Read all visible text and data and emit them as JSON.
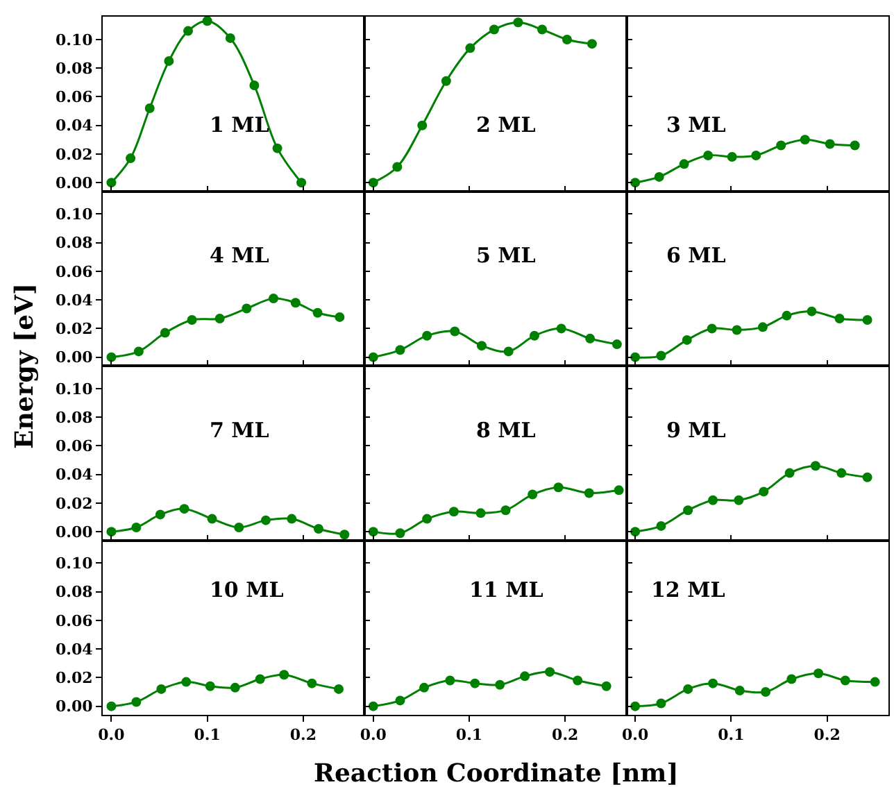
{
  "chart_data": [
    {
      "type": "line",
      "annotations": [
        "1 ML"
      ],
      "ylabel": "Energy [eV]",
      "x": [
        0,
        0.02,
        0.04,
        0.06,
        0.08,
        0.1,
        0.124,
        0.149,
        0.173,
        0.198
      ],
      "values": [
        0,
        0.017,
        0.052,
        0.085,
        0.106,
        0.113,
        0.101,
        0.068,
        0.024,
        0
      ],
      "color": "#008000",
      "marker": "circle",
      "xlim": [
        -0.009,
        0.264
      ],
      "ylim": [
        -0.006,
        0.116
      ],
      "xticks": [
        {
          "value": 0,
          "label": null
        },
        {
          "value": 0.1,
          "label": null
        },
        {
          "value": 0.2,
          "label": null
        }
      ],
      "yticks": [
        {
          "value": 0,
          "label": "0.00"
        },
        0.02,
        0.04,
        0.06,
        0.08,
        {
          "value": 0.1,
          "label": "0.10"
        }
      ],
      "tick_labels": "y"
    },
    {
      "type": "line",
      "annotations": [
        "2 ML"
      ],
      "x": [
        0,
        0.025,
        0.051,
        0.076,
        0.101,
        0.126,
        0.151,
        0.176,
        0.202,
        0.228
      ],
      "values": [
        0,
        0.011,
        0.04,
        0.071,
        0.094,
        0.107,
        0.112,
        0.107,
        0.1,
        0.097
      ],
      "color": "#008000",
      "marker": "circle",
      "xlim": [
        -0.009,
        0.264
      ],
      "ylim": [
        -0.006,
        0.116
      ],
      "xticks": [
        {
          "value": 0,
          "label": null
        },
        {
          "value": 0.1,
          "label": null
        },
        {
          "value": 0.2,
          "label": null
        }
      ],
      "yticks": [
        {
          "value": 0,
          "label": null
        },
        {
          "value": 0.02,
          "label": null
        },
        {
          "value": 0.04,
          "label": null
        },
        {
          "value": 0.06,
          "label": null
        },
        {
          "value": 0.08,
          "label": null
        },
        {
          "value": 0.1,
          "label": null
        }
      ],
      "tick_labels": false
    },
    {
      "type": "line",
      "annotations": [
        "3 ML"
      ],
      "x": [
        0,
        0.025,
        0.051,
        0.076,
        0.101,
        0.126,
        0.152,
        0.177,
        0.203,
        0.229
      ],
      "values": [
        0,
        0.004,
        0.013,
        0.019,
        0.018,
        0.019,
        0.026,
        0.03,
        0.027,
        0.026
      ],
      "color": "#008000",
      "marker": "circle",
      "xlim": [
        -0.009,
        0.264
      ],
      "ylim": [
        -0.006,
        0.116
      ],
      "xticks": [
        {
          "value": 0,
          "label": null
        },
        {
          "value": 0.1,
          "label": null
        },
        {
          "value": 0.2,
          "label": null
        }
      ],
      "yticks": [
        {
          "value": 0,
          "label": null
        },
        {
          "value": 0.02,
          "label": null
        },
        {
          "value": 0.04,
          "label": null
        },
        {
          "value": 0.06,
          "label": null
        },
        {
          "value": 0.08,
          "label": null
        },
        {
          "value": 0.1,
          "label": null
        }
      ],
      "tick_labels": false
    },
    {
      "type": "line",
      "annotations": [
        "4 ML"
      ],
      "x": [
        0,
        0.0285,
        0.056,
        0.084,
        0.113,
        0.141,
        0.169,
        0.192,
        0.215,
        0.238
      ],
      "values": [
        0,
        0.004,
        0.017,
        0.026,
        0.027,
        0.034,
        0.041,
        0.038,
        0.031,
        0.028
      ],
      "color": "#008000",
      "marker": "circle",
      "xlim": [
        -0.009,
        0.264
      ],
      "ylim": [
        -0.006,
        0.116
      ],
      "xticks": [
        {
          "value": 0,
          "label": null
        },
        {
          "value": 0.1,
          "label": null
        },
        {
          "value": 0.2,
          "label": null
        }
      ],
      "yticks": [
        {
          "value": 0,
          "label": "0.00"
        },
        0.02,
        0.04,
        0.06,
        0.08,
        {
          "value": 0.1,
          "label": "0.10"
        }
      ],
      "tick_labels": "y"
    },
    {
      "type": "line",
      "annotations": [
        "5 ML"
      ],
      "x": [
        0,
        0.028,
        0.056,
        0.085,
        0.113,
        0.141,
        0.168,
        0.196,
        0.226,
        0.254
      ],
      "values": [
        0,
        0.005,
        0.015,
        0.018,
        0.008,
        0.004,
        0.015,
        0.02,
        0.013,
        0.009
      ],
      "color": "#008000",
      "marker": "circle",
      "xlim": [
        -0.009,
        0.264
      ],
      "ylim": [
        -0.006,
        0.116
      ],
      "xticks": [
        {
          "value": 0,
          "label": null
        },
        {
          "value": 0.1,
          "label": null
        },
        {
          "value": 0.2,
          "label": null
        }
      ],
      "yticks": [
        {
          "value": 0,
          "label": null
        },
        {
          "value": 0.02,
          "label": null
        },
        {
          "value": 0.04,
          "label": null
        },
        {
          "value": 0.06,
          "label": null
        },
        {
          "value": 0.08,
          "label": null
        },
        {
          "value": 0.1,
          "label": null
        }
      ],
      "tick_labels": false
    },
    {
      "type": "line",
      "annotations": [
        "6 ML"
      ],
      "x": [
        0,
        0.027,
        0.054,
        0.08,
        0.106,
        0.133,
        0.158,
        0.184,
        0.213,
        0.242
      ],
      "values": [
        0,
        0.001,
        0.012,
        0.02,
        0.019,
        0.021,
        0.029,
        0.032,
        0.027,
        0.026
      ],
      "color": "#008000",
      "marker": "circle",
      "xlim": [
        -0.009,
        0.264
      ],
      "ylim": [
        -0.006,
        0.116
      ],
      "xticks": [
        {
          "value": 0,
          "label": null
        },
        {
          "value": 0.1,
          "label": null
        },
        {
          "value": 0.2,
          "label": null
        }
      ],
      "yticks": [
        {
          "value": 0,
          "label": null
        },
        {
          "value": 0.02,
          "label": null
        },
        {
          "value": 0.04,
          "label": null
        },
        {
          "value": 0.06,
          "label": null
        },
        {
          "value": 0.08,
          "label": null
        },
        {
          "value": 0.1,
          "label": null
        }
      ],
      "tick_labels": false
    },
    {
      "type": "line",
      "annotations": [
        "7 ML"
      ],
      "x": [
        0,
        0.026,
        0.051,
        0.076,
        0.105,
        0.133,
        0.161,
        0.188,
        0.216,
        0.243
      ],
      "values": [
        0,
        0.003,
        0.012,
        0.016,
        0.009,
        0.003,
        0.008,
        0.009,
        0.002,
        -0.002
      ],
      "color": "#008000",
      "marker": "circle",
      "xlim": [
        -0.009,
        0.264
      ],
      "ylim": [
        -0.006,
        0.116
      ],
      "xticks": [
        {
          "value": 0,
          "label": null
        },
        {
          "value": 0.1,
          "label": null
        },
        {
          "value": 0.2,
          "label": null
        }
      ],
      "yticks": [
        {
          "value": 0,
          "label": "0.00"
        },
        0.02,
        0.04,
        0.06,
        0.08,
        {
          "value": 0.1,
          "label": "0.10"
        }
      ],
      "tick_labels": "y"
    },
    {
      "type": "line",
      "annotations": [
        "8 ML"
      ],
      "x": [
        0,
        0.028,
        0.056,
        0.084,
        0.112,
        0.138,
        0.166,
        0.193,
        0.225,
        0.256
      ],
      "values": [
        0,
        -0.001,
        0.009,
        0.014,
        0.013,
        0.015,
        0.026,
        0.031,
        0.027,
        0.029
      ],
      "color": "#008000",
      "marker": "circle",
      "xlim": [
        -0.009,
        0.264
      ],
      "ylim": [
        -0.006,
        0.116
      ],
      "xticks": [
        {
          "value": 0,
          "label": null
        },
        {
          "value": 0.1,
          "label": null
        },
        {
          "value": 0.2,
          "label": null
        }
      ],
      "yticks": [
        {
          "value": 0,
          "label": null
        },
        {
          "value": 0.02,
          "label": null
        },
        {
          "value": 0.04,
          "label": null
        },
        {
          "value": 0.06,
          "label": null
        },
        {
          "value": 0.08,
          "label": null
        },
        {
          "value": 0.1,
          "label": null
        }
      ],
      "tick_labels": false
    },
    {
      "type": "line",
      "annotations": [
        "9 ML"
      ],
      "x": [
        0,
        0.027,
        0.055,
        0.081,
        0.108,
        0.134,
        0.161,
        0.188,
        0.215,
        0.242
      ],
      "values": [
        0,
        0.004,
        0.015,
        0.022,
        0.022,
        0.028,
        0.041,
        0.046,
        0.041,
        0.038
      ],
      "color": "#008000",
      "marker": "circle",
      "xlim": [
        -0.009,
        0.264
      ],
      "ylim": [
        -0.006,
        0.116
      ],
      "xticks": [
        {
          "value": 0,
          "label": null
        },
        {
          "value": 0.1,
          "label": null
        },
        {
          "value": 0.2,
          "label": null
        }
      ],
      "yticks": [
        {
          "value": 0,
          "label": null
        },
        {
          "value": 0.02,
          "label": null
        },
        {
          "value": 0.04,
          "label": null
        },
        {
          "value": 0.06,
          "label": null
        },
        {
          "value": 0.08,
          "label": null
        },
        {
          "value": 0.1,
          "label": null
        }
      ],
      "tick_labels": false
    },
    {
      "type": "line",
      "annotations": [
        "10 ML"
      ],
      "x": [
        0,
        0.026,
        0.052,
        0.078,
        0.103,
        0.129,
        0.155,
        0.18,
        0.209,
        0.237
      ],
      "values": [
        0,
        0.003,
        0.012,
        0.017,
        0.014,
        0.013,
        0.019,
        0.022,
        0.016,
        0.012
      ],
      "color": "#008000",
      "marker": "circle",
      "xlim": [
        -0.009,
        0.264
      ],
      "ylim": [
        -0.006,
        0.116
      ],
      "xticks": [
        {
          "value": 0,
          "label": "0.0"
        },
        {
          "value": 0.1,
          "label": "0.1"
        },
        {
          "value": 0.2,
          "label": "0.2"
        }
      ],
      "yticks": [
        {
          "value": 0,
          "label": "0.00"
        },
        0.02,
        0.04,
        0.06,
        0.08,
        {
          "value": 0.1,
          "label": "0.10"
        }
      ]
    },
    {
      "type": "line",
      "annotations": [
        "11 ML"
      ],
      "xlabel": "Reaction Coordinate [nm]",
      "x": [
        0,
        0.028,
        0.053,
        0.08,
        0.106,
        0.132,
        0.158,
        0.184,
        0.213,
        0.243
      ],
      "values": [
        0,
        0.004,
        0.013,
        0.018,
        0.016,
        0.015,
        0.021,
        0.024,
        0.018,
        0.014
      ],
      "color": "#008000",
      "marker": "circle",
      "xlim": [
        -0.009,
        0.264
      ],
      "ylim": [
        -0.006,
        0.116
      ],
      "xticks": [
        {
          "value": 0,
          "label": "0.0"
        },
        {
          "value": 0.1,
          "label": "0.1"
        },
        {
          "value": 0.2,
          "label": "0.2"
        }
      ],
      "yticks": [
        {
          "value": 0,
          "label": null
        },
        {
          "value": 0.02,
          "label": null
        },
        {
          "value": 0.04,
          "label": null
        },
        {
          "value": 0.06,
          "label": null
        },
        {
          "value": 0.08,
          "label": null
        },
        {
          "value": 0.1,
          "label": null
        }
      ],
      "tick_labels": "x"
    },
    {
      "type": "line",
      "annotations": [
        "12 ML"
      ],
      "x": [
        0,
        0.027,
        0.055,
        0.081,
        0.109,
        0.136,
        0.163,
        0.191,
        0.219,
        0.25
      ],
      "values": [
        0,
        0.002,
        0.012,
        0.016,
        0.011,
        0.01,
        0.019,
        0.023,
        0.018,
        0.017
      ],
      "color": "#008000",
      "marker": "circle",
      "xlim": [
        -0.009,
        0.264
      ],
      "ylim": [
        -0.006,
        0.116
      ],
      "xticks": [
        {
          "value": 0,
          "label": "0.0"
        },
        {
          "value": 0.1,
          "label": "0.1"
        },
        {
          "value": 0.2,
          "label": "0.2"
        }
      ],
      "yticks": [
        {
          "value": 0,
          "label": null
        },
        {
          "value": 0.02,
          "label": null
        },
        {
          "value": 0.04,
          "label": null
        },
        {
          "value": 0.06,
          "label": null
        },
        {
          "value": 0.08,
          "label": null
        },
        {
          "value": 0.1,
          "label": null
        }
      ],
      "tick_labels": "x"
    }
  ]
}
